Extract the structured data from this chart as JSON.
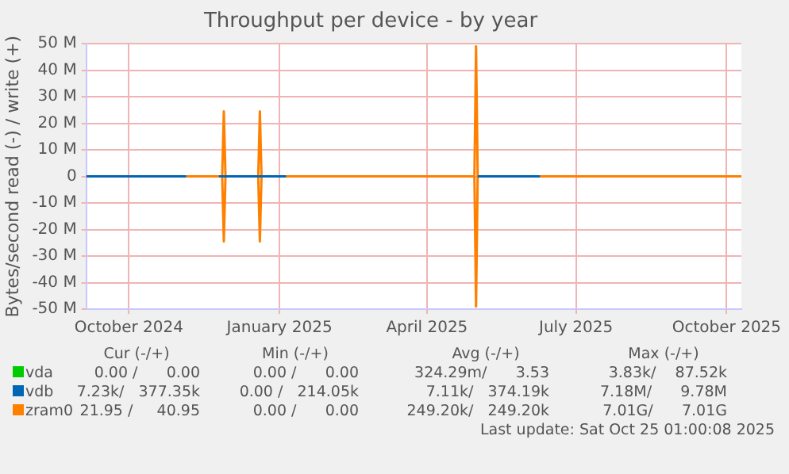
{
  "chart_data": {
    "type": "line",
    "title": "Throughput per device - by year",
    "ylabel": "Bytes/second read (-) / write (+)",
    "xlim": [
      "2024-09-20",
      "2025-10-25"
    ],
    "xticks": [
      {
        "value": "2024-10-16",
        "label": "October 2024"
      },
      {
        "value": "2025-01-16",
        "label": "January 2025"
      },
      {
        "value": "2025-04-16",
        "label": "April 2025"
      },
      {
        "value": "2025-07-16",
        "label": "July 2025"
      },
      {
        "value": "2025-10-16",
        "label": "October 2025"
      }
    ],
    "ylim": [
      -50000000,
      50000000
    ],
    "yticks": [
      {
        "value": -50000000,
        "label": "-50 M"
      },
      {
        "value": -40000000,
        "label": "-40 M"
      },
      {
        "value": -30000000,
        "label": "-30 M"
      },
      {
        "value": -20000000,
        "label": "-20 M"
      },
      {
        "value": -10000000,
        "label": "-10 M"
      },
      0,
      {
        "value": 10000000,
        "label": "10 M"
      },
      {
        "value": 20000000,
        "label": "20 M"
      },
      {
        "value": 30000000,
        "label": "30 M"
      },
      {
        "value": 40000000,
        "label": "40 M"
      },
      {
        "value": 50000000,
        "label": "50 M"
      }
    ],
    "grid": true,
    "legend": "bottom left",
    "marker": "none",
    "line_style": "solid",
    "series": [
      {
        "name": "vda",
        "color": "#00cc00"
      },
      {
        "name": "vdb",
        "color": "#0066b3",
        "x": [
          "2024-09-20",
          "2024-11-20",
          "2024-11-21",
          "2024-12-10",
          "2024-12-17",
          "2025-01-20",
          "2025-01-21",
          "2025-05-17",
          "2025-06-24"
        ],
        "values": [
          0,
          0,
          null,
          0,
          0,
          0,
          null,
          0,
          0
        ]
      },
      {
        "name": "zram0",
        "color": "#ff8000",
        "x": [
          "2024-09-20",
          "2024-12-12",
          "2024-12-13",
          "2024-12-14",
          "2025-01-03",
          "2025-01-04",
          "2025-01-05",
          "2025-05-15",
          "2025-05-16",
          "2025-05-17",
          "2025-10-25"
        ],
        "values": [
          0,
          0,
          24500000,
          0,
          0,
          24500000,
          0,
          0,
          49000000,
          0,
          0
        ]
      },
      {
        "color": "#ff8000",
        "x": [
          "2024-09-20",
          "2024-12-12",
          "2024-12-13",
          "2024-12-14",
          "2025-01-03",
          "2025-01-04",
          "2025-01-05",
          "2025-05-15",
          "2025-05-16",
          "2025-05-17",
          "2025-10-25"
        ],
        "values": [
          0,
          0,
          -24500000,
          0,
          0,
          -24500000,
          0,
          0,
          -49000000,
          0,
          0
        ]
      }
    ],
    "annotations": [
      "Cur (-/+)",
      "Min (-/+)",
      "Avg (-/+)",
      "Max (-/+)",
      "0.00 /      0.00",
      "0.00 /      0.00",
      "324.29m/      3.53",
      "3.83k/    87.52k",
      "7.23k/   377.35k",
      "0.00 /   214.05k",
      "7.11k/   374.19k",
      "7.18M/      9.78M",
      "21.95 /     40.95",
      "0.00 /      0.00",
      "249.20k/   249.20k",
      "7.01G/      7.01G",
      "Last update: Sat Oct 25 01:00:08 2025"
    ]
  }
}
